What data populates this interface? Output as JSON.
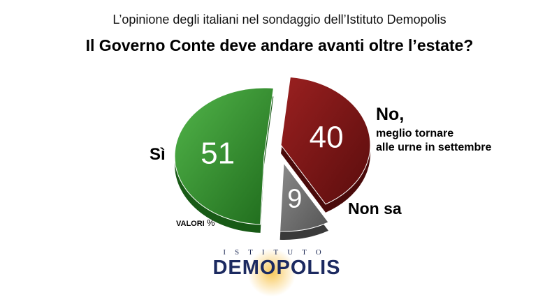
{
  "header": {
    "subtitle": "L’opinione degli italiani nel sondaggio dell’Istituto Demopolis",
    "title": "Il Governo Conte deve andare avanti oltre l’estate?"
  },
  "chart_data": {
    "type": "pie",
    "title": "Il Governo Conte deve andare avanti oltre l’estate?",
    "subtitle": "L’opinione degli italiani nel sondaggio dell’Istituto Demopolis",
    "unit": "VALORI %",
    "slices": [
      {
        "label": "Sì",
        "value": 51,
        "color": "#2e8a2a"
      },
      {
        "label": "No, meglio tornare alle urne in settembre",
        "value": 40,
        "color": "#7a1414"
      },
      {
        "label": "Non sa",
        "value": 9,
        "color": "#7a7a7a"
      }
    ]
  },
  "labels": {
    "si": "Sì",
    "no": "No,",
    "no_sub_1": "meglio tornare",
    "no_sub_2": "alle urne in settembre",
    "non_sa": "Non sa",
    "valori": "VALORI",
    "valori_pct": "%"
  },
  "brand": {
    "top": "ISTITUTO",
    "main": "DEMOPOLIS",
    "accent": "#1c2a60"
  }
}
